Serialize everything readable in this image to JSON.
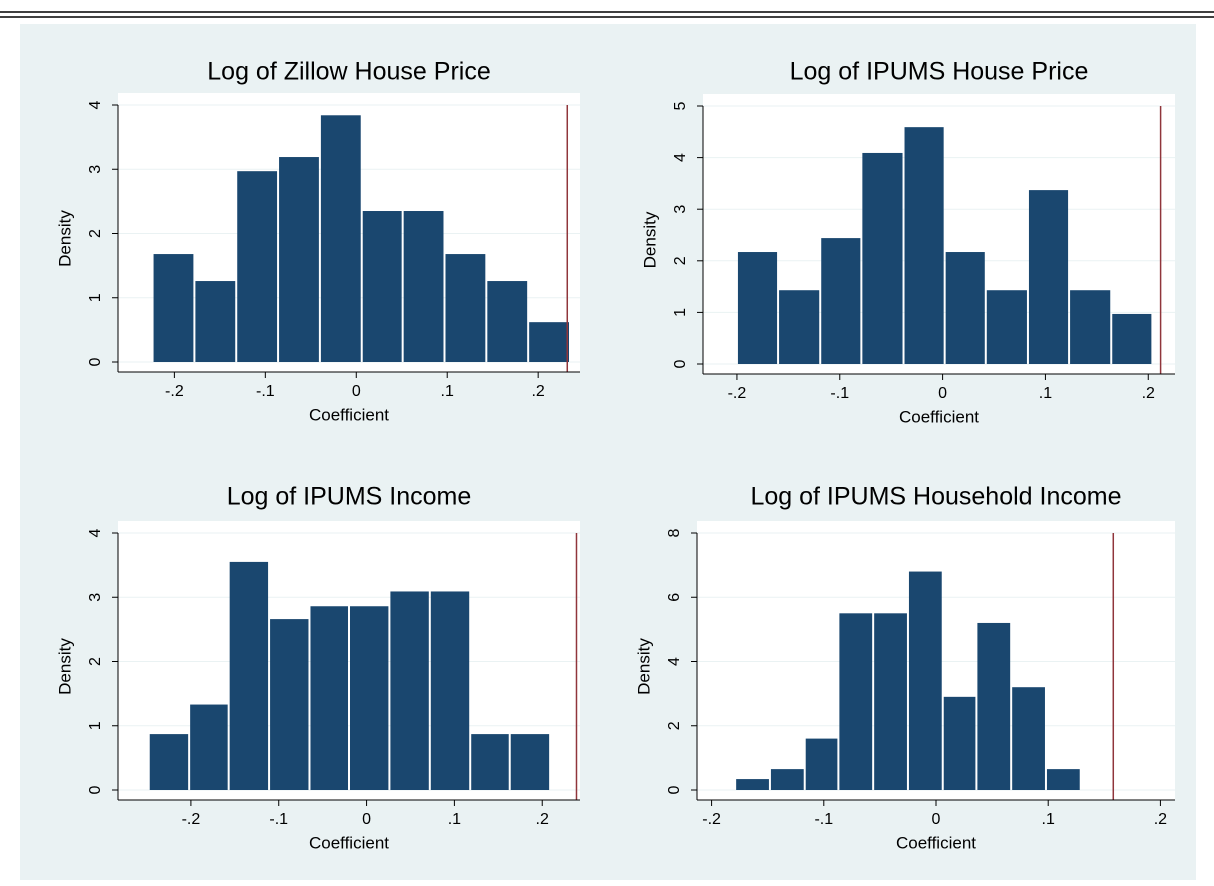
{
  "chart_data": [
    {
      "type": "histogram",
      "title": "Log of Zillow House Price",
      "x_label": "Coefficient",
      "y_label": "Density",
      "bins": [
        -0.224,
        -0.178,
        -0.132,
        -0.086,
        -0.04,
        0.006,
        0.051,
        0.097,
        0.143,
        0.189,
        0.235
      ],
      "values": [
        1.68,
        1.26,
        2.97,
        3.19,
        3.84,
        2.35,
        2.35,
        1.68,
        1.26,
        0.62
      ],
      "color": "#1a476f",
      "reference_x": 0.232,
      "reference_color": "#90353b",
      "xlim": [
        -0.262,
        0.246
      ],
      "ylim": [
        0,
        4
      ],
      "xticks": [
        {
          "value": -0.2,
          "label": "-.2"
        },
        {
          "value": -0.1,
          "label": "-.1"
        },
        0,
        {
          "value": 0.1,
          "label": ".1"
        },
        {
          "value": 0.2,
          "label": ".2"
        }
      ],
      "yticks": [
        0,
        1,
        2,
        3,
        4
      ],
      "grid": true
    },
    {
      "type": "histogram",
      "title": "Log of IPUMS House Price",
      "x_label": "Coefficient",
      "y_label": "Density",
      "bins": [
        -0.2,
        -0.16,
        -0.119,
        -0.079,
        -0.038,
        0.002,
        0.042,
        0.083,
        0.123,
        0.164,
        0.204
      ],
      "values": [
        2.17,
        1.43,
        2.44,
        4.09,
        4.59,
        2.17,
        1.43,
        3.37,
        1.43,
        0.97
      ],
      "color": "#1a476f",
      "reference_x": 0.212,
      "reference_color": "#90353b",
      "xlim": [
        -0.233,
        0.226
      ],
      "ylim": [
        0,
        5
      ],
      "xticks": [
        {
          "value": -0.2,
          "label": "-.2"
        },
        {
          "value": -0.1,
          "label": "-.1"
        },
        0,
        {
          "value": 0.1,
          "label": ".1"
        },
        {
          "value": 0.2,
          "label": ".2"
        }
      ],
      "yticks": [
        0,
        1,
        2,
        3,
        4,
        5
      ],
      "grid": true
    },
    {
      "type": "histogram",
      "title": "Log of IPUMS Income",
      "x_label": "Coefficient",
      "y_label": "Density",
      "bins": [
        -0.248,
        -0.202,
        -0.157,
        -0.111,
        -0.065,
        -0.02,
        0.026,
        0.072,
        0.118,
        0.163,
        0.209
      ],
      "values": [
        0.87,
        1.33,
        3.55,
        2.66,
        2.86,
        2.86,
        3.09,
        3.09,
        0.87,
        0.87
      ],
      "color": "#1a476f",
      "reference_x": 0.239,
      "reference_color": "#90353b",
      "xlim": [
        -0.283,
        0.243
      ],
      "ylim": [
        0,
        4
      ],
      "xticks": [
        {
          "value": -0.2,
          "label": "-.2"
        },
        {
          "value": -0.1,
          "label": "-.1"
        },
        0,
        {
          "value": 0.1,
          "label": ".1"
        },
        {
          "value": 0.2,
          "label": ".2"
        }
      ],
      "yticks": [
        0,
        1,
        2,
        3,
        4
      ],
      "grid": true
    },
    {
      "type": "histogram",
      "title": "Log of IPUMS Household Income",
      "x_label": "Coefficient",
      "y_label": "Density",
      "bins": [
        -0.179,
        -0.148,
        -0.117,
        -0.087,
        -0.056,
        -0.025,
        0.006,
        0.036,
        0.067,
        0.098,
        0.129
      ],
      "values": [
        0.34,
        0.65,
        1.6,
        5.5,
        5.5,
        6.8,
        2.9,
        5.2,
        3.2,
        0.65
      ],
      "color": "#1a476f",
      "reference_x": 0.158,
      "reference_color": "#90353b",
      "xlim": [
        -0.213,
        0.213
      ],
      "ylim": [
        0,
        8
      ],
      "xticks": [
        {
          "value": -0.2,
          "label": "-.2"
        },
        {
          "value": -0.1,
          "label": "-.1"
        },
        0,
        {
          "value": 0.1,
          "label": ".1"
        },
        {
          "value": 0.2,
          "label": ".2"
        }
      ],
      "yticks": [
        0,
        2,
        4,
        6,
        8
      ],
      "grid": true
    }
  ]
}
